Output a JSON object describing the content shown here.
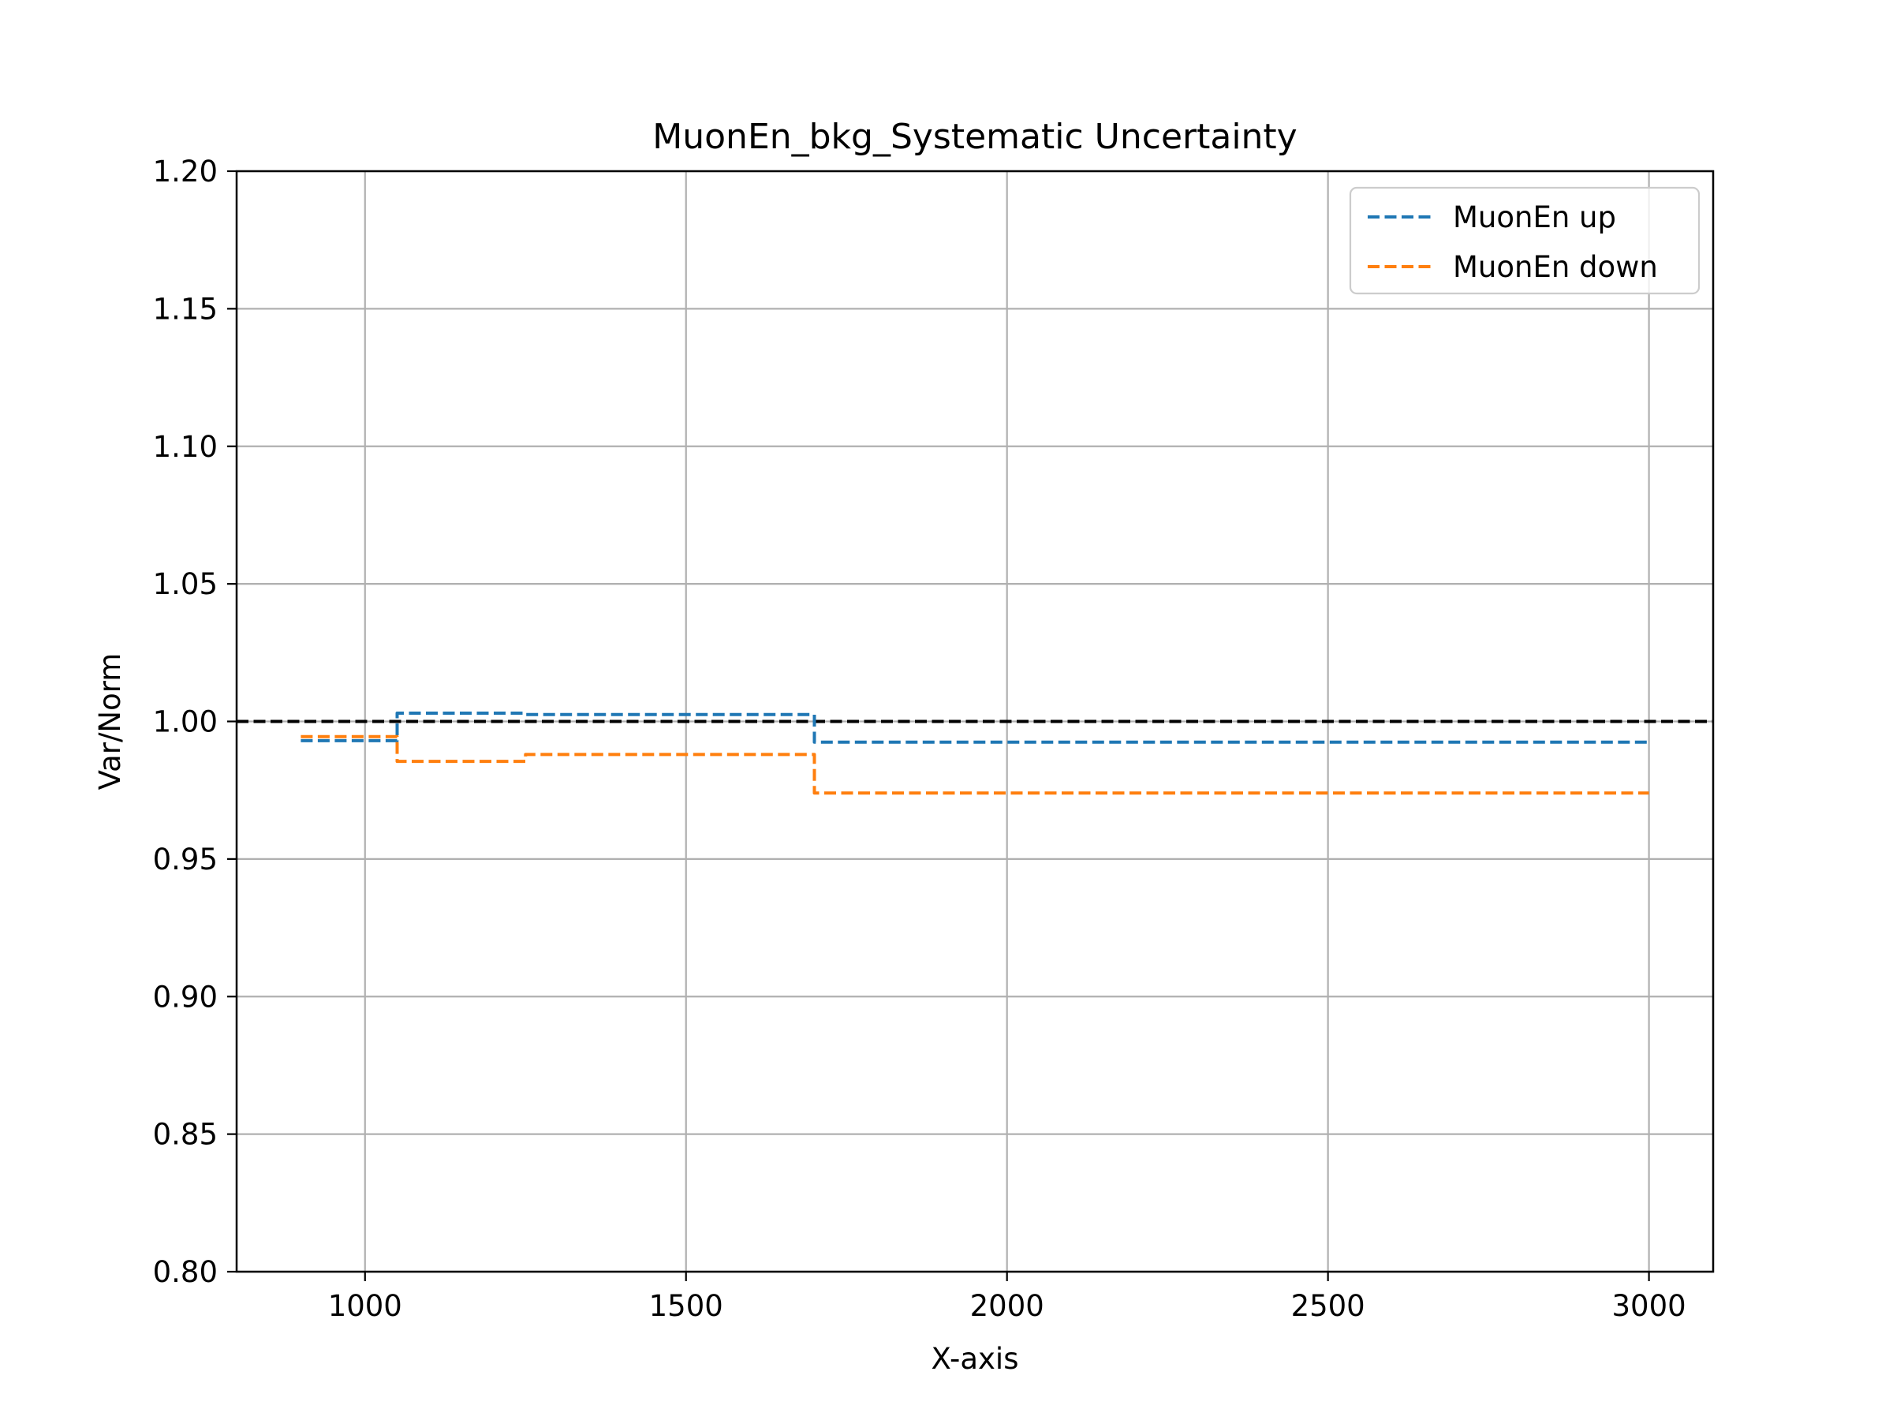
{
  "chart_data": {
    "type": "line",
    "title": "MuonEn_bkg_Systematic Uncertainty",
    "xlabel": "X-axis",
    "ylabel": "Var/Norm",
    "xlim": [
      800,
      3100
    ],
    "ylim": [
      0.8,
      1.2
    ],
    "xticks": [
      1000,
      1500,
      2000,
      2500,
      3000
    ],
    "yticks": [
      0.8,
      0.85,
      0.9,
      0.95,
      1.0,
      1.05,
      1.1,
      1.15,
      1.2
    ],
    "ytick_labels": [
      "0.80",
      "0.85",
      "0.90",
      "0.95",
      "1.00",
      "1.05",
      "1.10",
      "1.15",
      "1.20"
    ],
    "grid": true,
    "legend_position": "top-right",
    "reference_line": {
      "y": 1.0,
      "color": "#000000",
      "style": "dashed"
    },
    "series": [
      {
        "name": "MuonEn up",
        "color": "#1f77b4",
        "style": "dashed",
        "x": [
          900,
          1050,
          1050,
          1250,
          1250,
          1700,
          1700,
          3000
        ],
        "y": [
          0.993,
          0.993,
          1.003,
          1.003,
          1.0025,
          1.0025,
          0.9925,
          0.9925
        ]
      },
      {
        "name": "MuonEn down",
        "color": "#ff7f0e",
        "style": "dashed",
        "x": [
          900,
          1050,
          1050,
          1250,
          1250,
          1700,
          1700,
          3000
        ],
        "y": [
          0.9945,
          0.9945,
          0.9855,
          0.9855,
          0.988,
          0.988,
          0.974,
          0.974
        ]
      }
    ]
  }
}
